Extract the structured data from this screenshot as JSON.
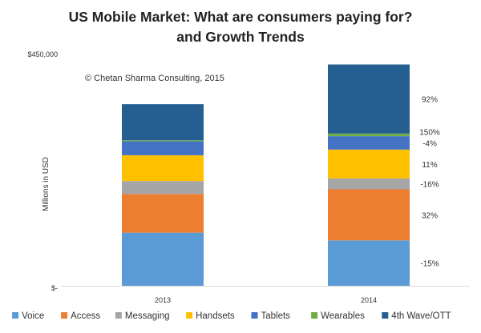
{
  "chart_data": {
    "type": "bar",
    "stacked": true,
    "title": "US Mobile Market: What are consumers paying for?",
    "subtitle": "and Growth Trends",
    "annotation": "© Chetan Sharma Consulting, 2015",
    "ylabel": "Millions in USD",
    "xlabel": "",
    "y_tick_labels": [
      "$-",
      "$450,000"
    ],
    "ylim": [
      0,
      450000
    ],
    "grid": false,
    "legend_position": "bottom",
    "categories": [
      "2013",
      "2014"
    ],
    "series": [
      {
        "name": "Voice",
        "color": "#5b9bd5",
        "values": [
          103000,
          88000
        ]
      },
      {
        "name": "Access",
        "color": "#ed7d31",
        "values": [
          75000,
          99000
        ]
      },
      {
        "name": "Messaging",
        "color": "#a5a5a5",
        "values": [
          25000,
          21000
        ]
      },
      {
        "name": "Handsets",
        "color": "#ffc000",
        "values": [
          50000,
          56000
        ]
      },
      {
        "name": "Tablets",
        "color": "#4472c4",
        "values": [
          27000,
          26000
        ]
      },
      {
        "name": "Wearables",
        "color": "#70ad47",
        "values": [
          2000,
          5000
        ]
      },
      {
        "name": "4th Wave/OTT",
        "color": "#255e91",
        "values": [
          70000,
          134000
        ]
      }
    ],
    "growth_labels": [
      "-15%",
      "32%",
      "-16%",
      "11%",
      "-4%",
      "150%",
      "92%"
    ]
  }
}
